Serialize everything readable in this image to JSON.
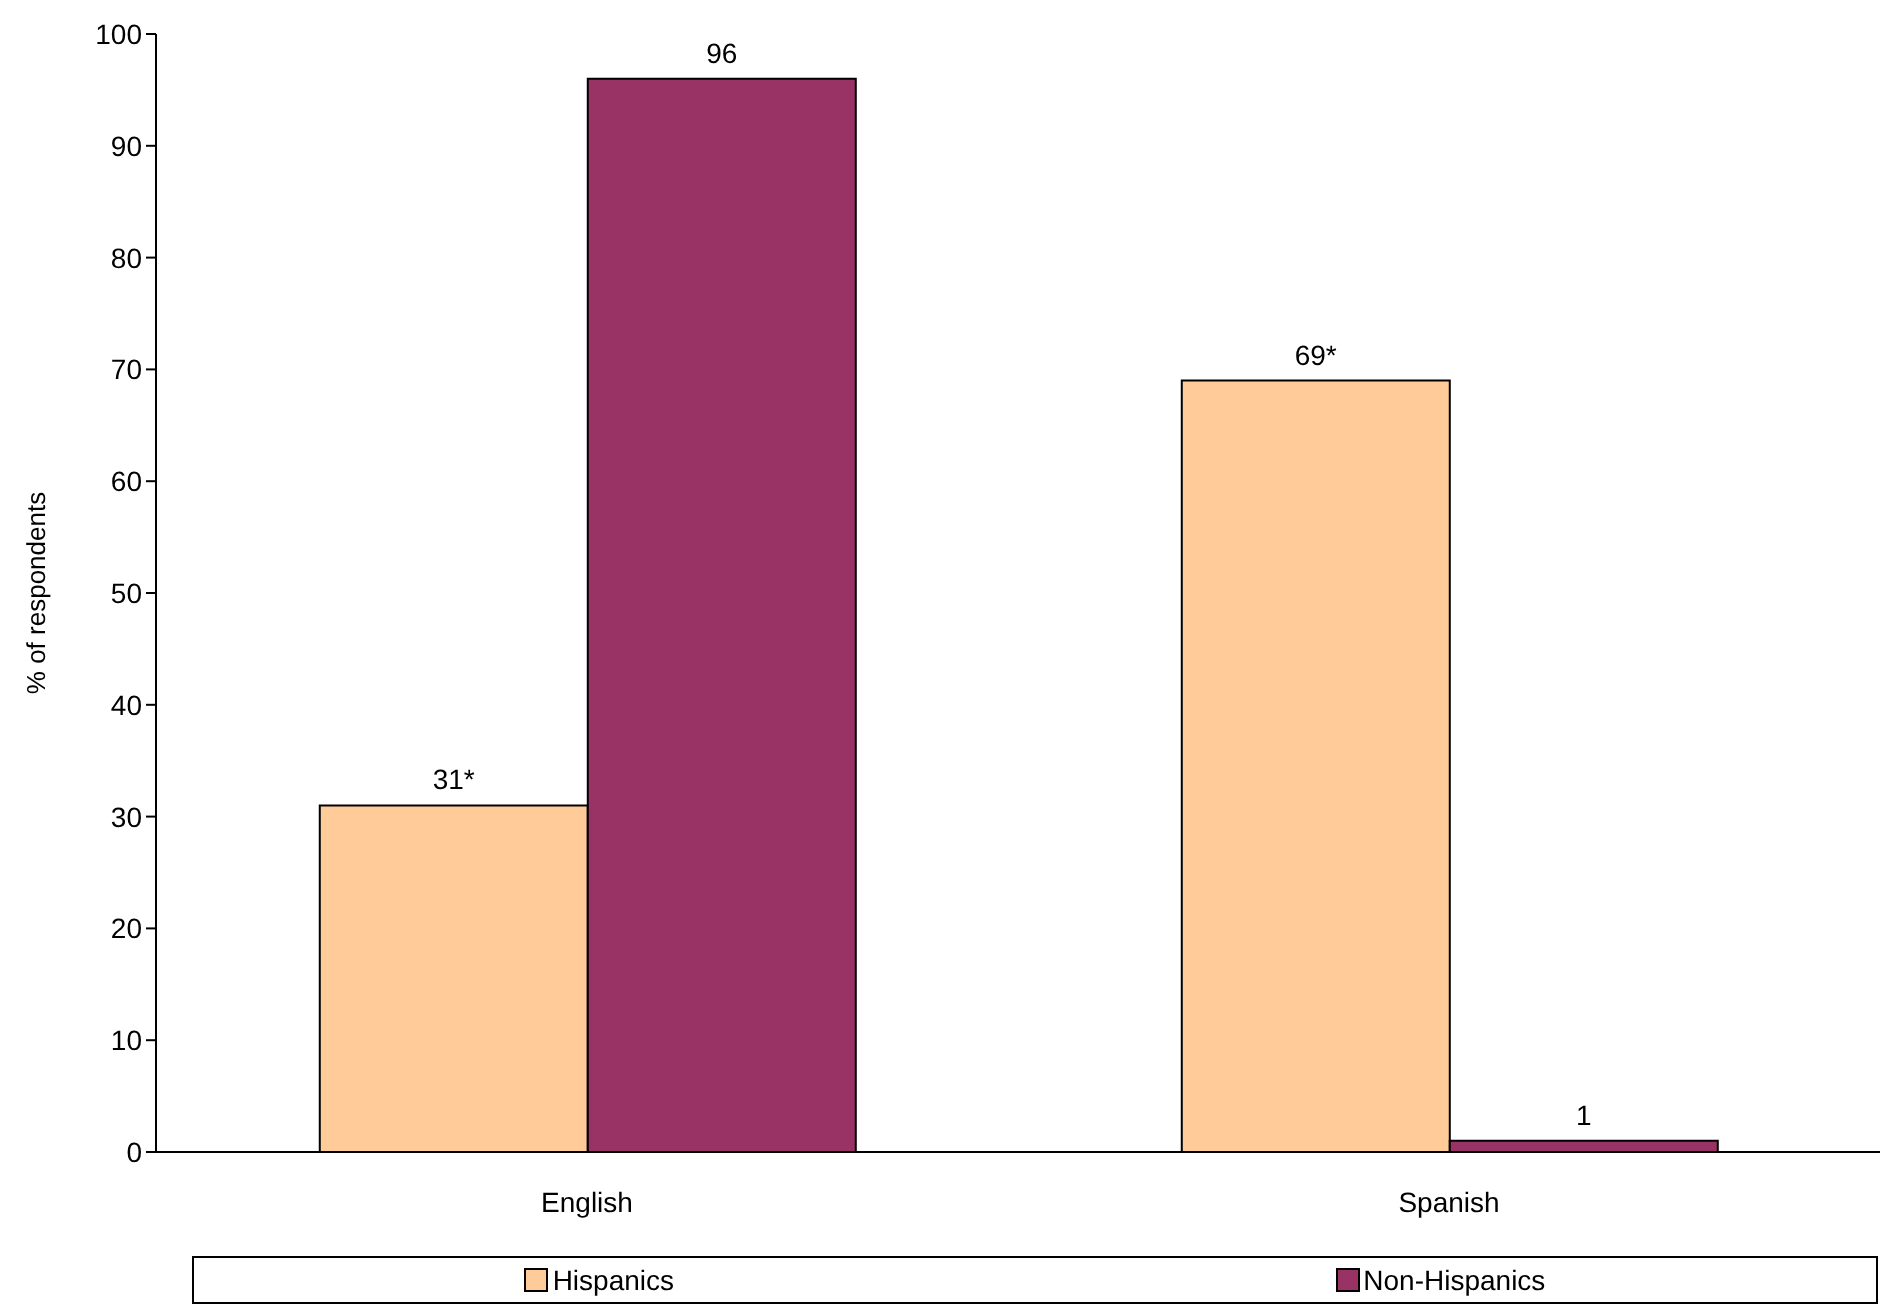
{
  "chart_data": {
    "type": "bar",
    "ylabel": "% of respondents",
    "categories": [
      "English",
      "Spanish"
    ],
    "series": [
      {
        "name": "Hispanics",
        "color": "#ffcc99",
        "values": [
          31,
          69
        ],
        "value_labels": [
          "31*",
          "69*"
        ]
      },
      {
        "name": "Non-Hispanics",
        "color": "#993366",
        "values": [
          96,
          1
        ],
        "value_labels": [
          "96",
          "1"
        ]
      }
    ],
    "ylim": [
      0,
      100
    ],
    "yticks": [
      0,
      10,
      20,
      30,
      40,
      50,
      60,
      70,
      80,
      90,
      100
    ],
    "grid": false,
    "legend": "bottom"
  }
}
